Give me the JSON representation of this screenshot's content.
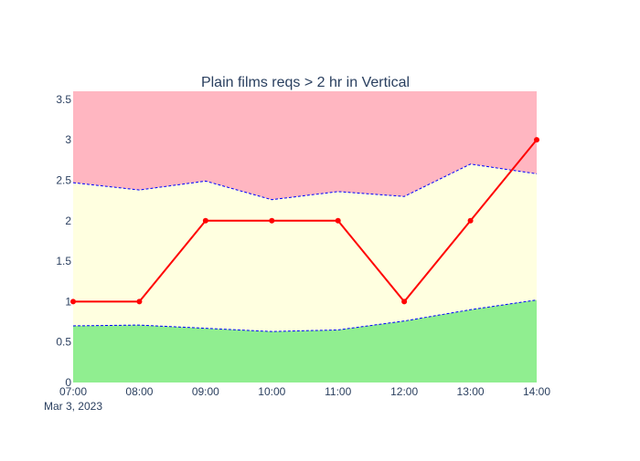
{
  "chart_data": {
    "type": "line",
    "title": "Plain films reqs > 2 hr in Vertical",
    "xlabel": "",
    "ylabel": "",
    "x": [
      "07:00",
      "08:00",
      "09:00",
      "10:00",
      "11:00",
      "12:00",
      "13:00",
      "14:00"
    ],
    "x_date_label": "Mar 3, 2023",
    "ylim": [
      0,
      3.6
    ],
    "y_ticks": [
      "0",
      "0.5",
      "1",
      "1.5",
      "2",
      "2.5",
      "3",
      "3.5"
    ],
    "grid": false,
    "series": [
      {
        "values": [
          0.7,
          0.71,
          0.67,
          0.63,
          0.65,
          0.76,
          0.9,
          1.02
        ]
      },
      {
        "values": [
          2.47,
          2.38,
          2.49,
          2.26,
          2.36,
          2.3,
          2.7,
          2.58
        ]
      },
      {
        "values": [
          1,
          1,
          2,
          2,
          2,
          1,
          2,
          3
        ]
      }
    ],
    "colors": {
      "lower_band": "#90ee90",
      "middle_band": "#ffffe0",
      "upper_band": "#ffb6c1",
      "band_edge": "#0000ff",
      "actual_line": "#ff0000",
      "text": "#2a3f5f"
    }
  }
}
